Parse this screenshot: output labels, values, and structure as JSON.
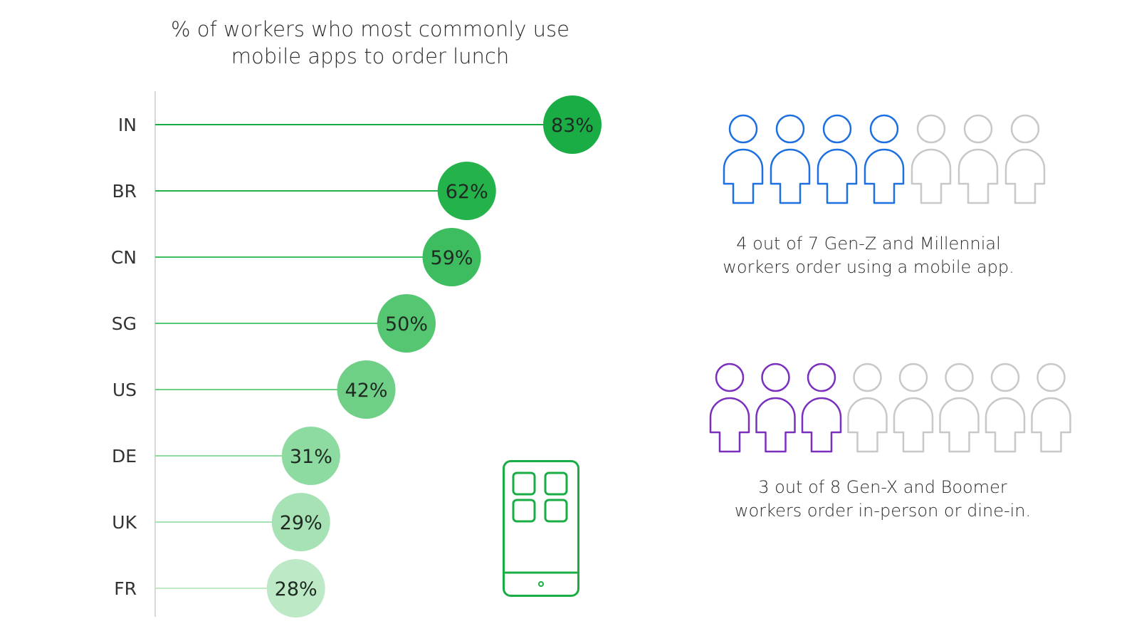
{
  "title": {
    "line1": "% of workers who most commonly use",
    "line2": "mobile apps to order lunch"
  },
  "chart_data": {
    "type": "lollipop",
    "categories": [
      "IN",
      "BR",
      "CN",
      "SG",
      "US",
      "DE",
      "UK",
      "FR"
    ],
    "values": [
      83,
      62,
      59,
      50,
      42,
      31,
      29,
      28
    ],
    "value_labels": [
      "83%",
      "62%",
      "59%",
      "50%",
      "42%",
      "31%",
      "29%",
      "28%"
    ],
    "title": "% of workers who most commonly use mobile apps to order lunch",
    "xlim": [
      0,
      100
    ],
    "colors": [
      "#1aad45",
      "#24b24b",
      "#3dbd5f",
      "#55c672",
      "#6fcf87",
      "#8edba1",
      "#a7e2b5",
      "#bde9c7"
    ]
  },
  "pictogram_genz": {
    "highlighted": 4,
    "total": 7,
    "highlight_color": "#1e6fe0",
    "other_color": "#c8c8c8",
    "caption_line1": "4 out of 7 Gen-Z and Millennial",
    "caption_line2": "workers order using a mobile app."
  },
  "pictogram_genx": {
    "highlighted": 3,
    "total": 8,
    "highlight_color": "#7b2fbe",
    "other_color": "#c8c8c8",
    "caption_line1": "3 out of 8 Gen-X and Boomer",
    "caption_line2": "workers order in-person or dine-in."
  },
  "icons": {
    "phone": "mobile-phone-icon",
    "person": "person-icon"
  },
  "accent_color": "#1aad45"
}
